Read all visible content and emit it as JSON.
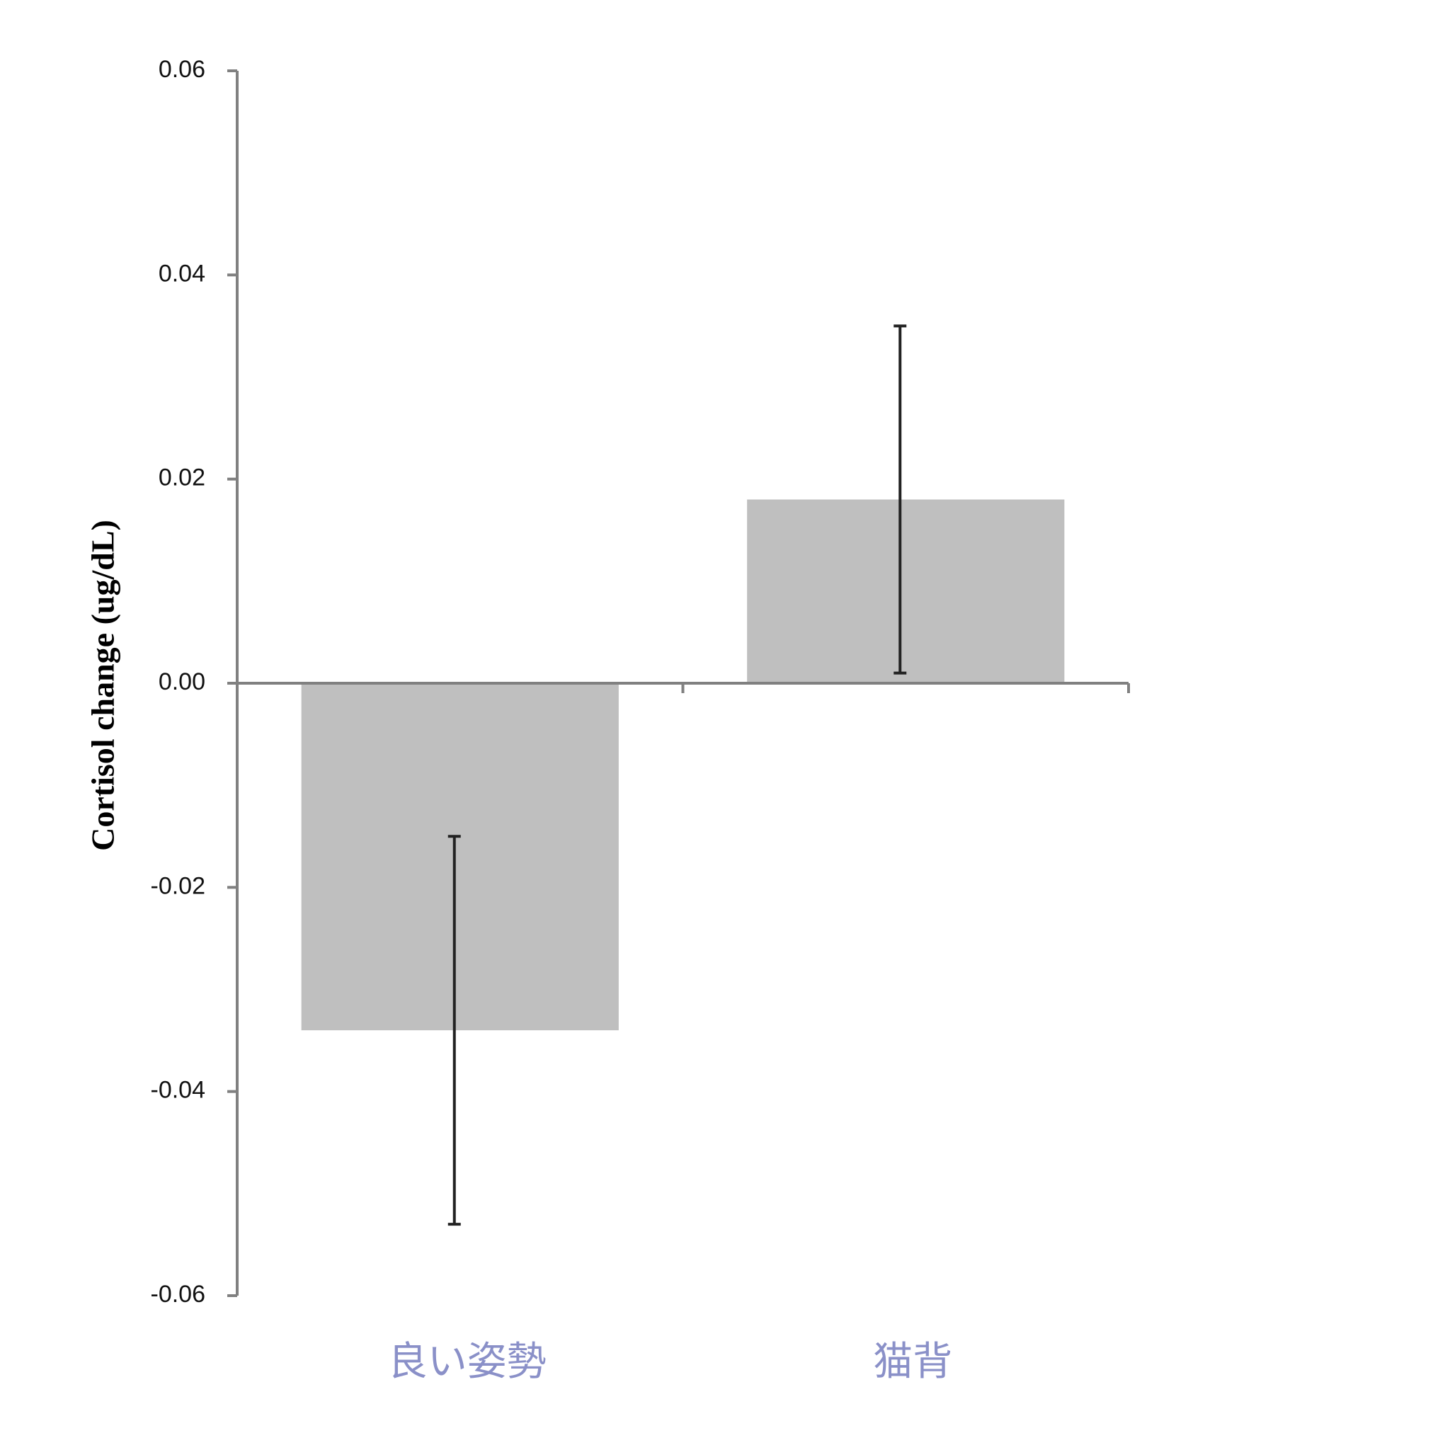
{
  "chart_data": {
    "type": "bar",
    "y_label": "Cortisol change (ug/dL)",
    "categories": [
      "良い姿勢",
      "猫背"
    ],
    "values": [
      -0.034,
      0.018
    ],
    "errors": [
      0.019,
      0.017
    ],
    "color": "#bfbfbf",
    "error_color": "#222222",
    "ylim": [
      -0.06,
      0.06
    ],
    "yticks": [
      -0.06,
      -0.04,
      -0.02,
      {
        "value": 0,
        "label": "0.00"
      },
      0.02,
      0.04,
      0.06
    ],
    "grid": false
  }
}
